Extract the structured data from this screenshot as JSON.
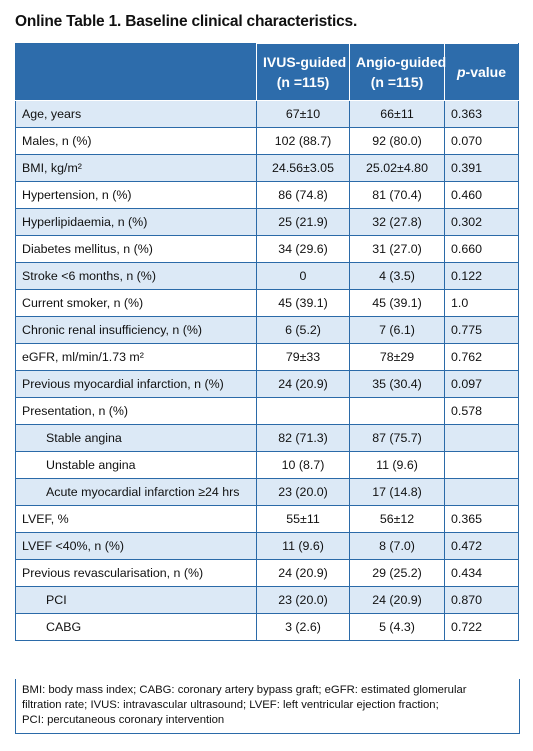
{
  "title": "Online Table 1. Baseline clinical characteristics.",
  "header": {
    "ivus_line1": "IVUS-guided",
    "ivus_line2": "(n =115)",
    "angio_line1": "Angio-guided",
    "angio_line2": "(n =115)",
    "p_italic": "p",
    "p_rest": "-value"
  },
  "rows": [
    {
      "label": "Age, years",
      "ivus": "67±10",
      "angio": "66±11",
      "p": "0.363"
    },
    {
      "label": "Males, n (%)",
      "ivus": "102 (88.7)",
      "angio": "92 (80.0)",
      "p": "0.070"
    },
    {
      "label": "BMI, kg/m²",
      "ivus": "24.56±3.05",
      "angio": "25.02±4.80",
      "p": "0.391"
    },
    {
      "label": "Hypertension, n (%)",
      "ivus": "86 (74.8)",
      "angio": "81 (70.4)",
      "p": "0.460"
    },
    {
      "label": "Hyperlipidaemia, n (%)",
      "ivus": "25 (21.9)",
      "angio": "32 (27.8)",
      "p": "0.302"
    },
    {
      "label": "Diabetes mellitus, n (%)",
      "ivus": "34 (29.6)",
      "angio": "31 (27.0)",
      "p": "0.660"
    },
    {
      "label": "Stroke <6 months, n (%)",
      "ivus": "0",
      "angio": "4 (3.5)",
      "p": "0.122"
    },
    {
      "label": "Current smoker, n (%)",
      "ivus": "45 (39.1)",
      "angio": "45 (39.1)",
      "p": "1.0"
    },
    {
      "label": "Chronic renal insufficiency, n (%)",
      "ivus": "6 (5.2)",
      "angio": "7 (6.1)",
      "p": "0.775"
    },
    {
      "label": "eGFR, ml/min/1.73 m²",
      "ivus": "79±33",
      "angio": "78±29",
      "p": "0.762"
    },
    {
      "label": "Previous myocardial infarction, n (%)",
      "ivus": "24 (20.9)",
      "angio": "35 (30.4)",
      "p": "0.097"
    },
    {
      "label": "Presentation, n (%)",
      "ivus": "",
      "angio": "",
      "p": "0.578"
    },
    {
      "label": "Stable angina",
      "ivus": "82 (71.3)",
      "angio": "87 (75.7)",
      "p": ""
    },
    {
      "label": "Unstable angina",
      "ivus": "10 (8.7)",
      "angio": "11 (9.6)",
      "p": ""
    },
    {
      "label": "Acute myocardial infarction ≥24 hrs",
      "ivus": "23 (20.0)",
      "angio": "17 (14.8)",
      "p": ""
    },
    {
      "label": "LVEF, %",
      "ivus": "55±11",
      "angio": "56±12",
      "p": "0.365"
    },
    {
      "label": "LVEF <40%, n (%)",
      "ivus": "11 (9.6)",
      "angio": "8 (7.0)",
      "p": "0.472"
    },
    {
      "label": "Previous revascularisation, n (%)",
      "ivus": "24 (20.9)",
      "angio": "29 (25.2)",
      "p": "0.434"
    },
    {
      "label": "PCI",
      "ivus": "23 (20.0)",
      "angio": "24 (20.9)",
      "p": "0.870"
    },
    {
      "label": "CABG",
      "ivus": "3 (2.6)",
      "angio": "5 (4.3)",
      "p": "0.722"
    }
  ],
  "footnote": {
    "line1": "BMI: body mass index; CABG: coronary artery bypass graft; eGFR: estimated glomerular",
    "line2": "filtration rate; IVUS: intravascular ultrasound; LVEF: left ventricular ejection fraction;",
    "line3": "PCI: percutaneous coronary intervention"
  }
}
